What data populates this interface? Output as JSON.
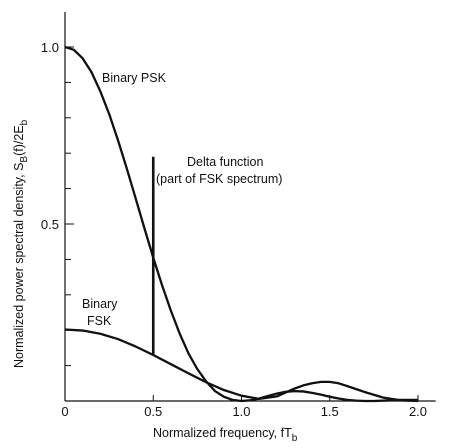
{
  "chart_data": {
    "type": "line",
    "title": "",
    "xlabel": "Normalized frequency, fT",
    "xlabel_sub": "b",
    "ylabel": "Normalized power spectral density, S",
    "ylabel_sub1": "B",
    "ylabel_mid": "(f)/2E",
    "ylabel_sub2": "b",
    "xlim": [
      0,
      2.1
    ],
    "ylim": [
      0,
      1.1
    ],
    "x_ticks": [
      0,
      0.5,
      1.0,
      1.5,
      2.0
    ],
    "x_tick_labels": [
      "0",
      "0.5",
      "1.0",
      "1.5",
      "2.0"
    ],
    "y_major_ticks": [
      0.5,
      1.0
    ],
    "y_tick_labels": [
      "0.5",
      "1.0"
    ],
    "y_minor_ticks": [
      0.1,
      0.2,
      0.3,
      0.4,
      0.6,
      0.7,
      0.8,
      0.9
    ],
    "grid": false,
    "series": [
      {
        "name": "Binary PSK",
        "x": [
          0,
          0.05,
          0.1,
          0.15,
          0.2,
          0.25,
          0.3,
          0.35,
          0.4,
          0.45,
          0.5,
          0.55,
          0.6,
          0.65,
          0.7,
          0.75,
          0.8,
          0.85,
          0.9,
          0.95,
          1.0,
          1.05,
          1.1,
          1.15,
          1.2,
          1.25,
          1.3,
          1.35,
          1.4,
          1.45,
          1.5,
          1.55,
          1.6,
          1.65,
          1.7,
          1.75,
          1.8,
          1.85,
          1.9,
          1.95,
          2.0
        ],
        "y": [
          1.0,
          0.992,
          0.968,
          0.929,
          0.875,
          0.811,
          0.737,
          0.657,
          0.573,
          0.488,
          0.405,
          0.327,
          0.255,
          0.19,
          0.134,
          0.09,
          0.055,
          0.028,
          0.012,
          0.003,
          0.0,
          0.002,
          0.007,
          0.014,
          0.021,
          0.026,
          0.028,
          0.027,
          0.023,
          0.018,
          0.012,
          0.007,
          0.003,
          0.001,
          0.0,
          0.0,
          0.001,
          0.002,
          0.003,
          0.003,
          0.003
        ]
      },
      {
        "name": "Binary FSK",
        "x": [
          0,
          0.1,
          0.2,
          0.3,
          0.4,
          0.5,
          0.6,
          0.7,
          0.8,
          0.9,
          1.0,
          1.1,
          1.2,
          1.3,
          1.35,
          1.4,
          1.45,
          1.5,
          1.55,
          1.6,
          1.7,
          1.8,
          1.9,
          2.0
        ],
        "y": [
          0.202,
          0.199,
          0.19,
          0.175,
          0.154,
          0.13,
          0.104,
          0.078,
          0.053,
          0.031,
          0.015,
          0.006,
          0.013,
          0.035,
          0.044,
          0.05,
          0.054,
          0.054,
          0.05,
          0.042,
          0.025,
          0.01,
          0.002,
          0.0
        ]
      }
    ],
    "delta": {
      "x": 0.5,
      "y_bottom": 0.13,
      "y_top": 0.69
    },
    "annotations": {
      "psk_label": "Binary PSK",
      "fsk_label_line1": "Binary",
      "fsk_label_line2": "FSK",
      "delta_line1": "Delta function",
      "delta_line2": "(part of FSK spectrum)"
    },
    "colors": {
      "line": "#111111",
      "axis": "#111111",
      "background": "#ffffff"
    }
  }
}
